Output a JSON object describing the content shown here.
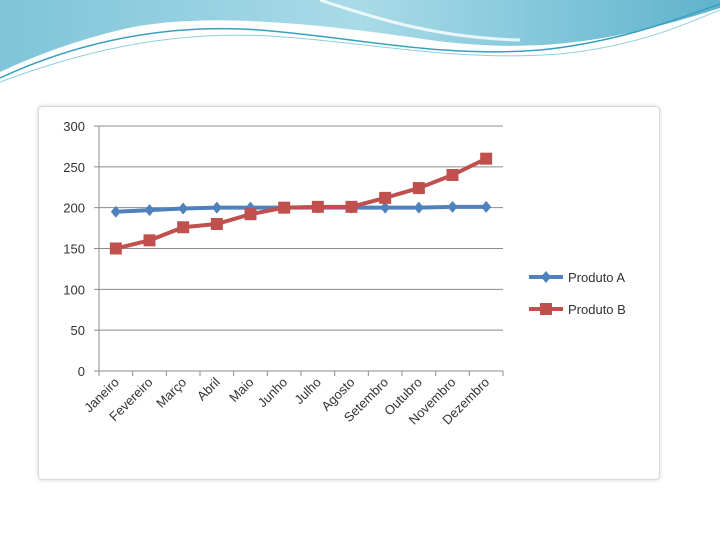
{
  "chart_data": {
    "type": "line",
    "title": "",
    "xlabel": "",
    "ylabel": "",
    "categories": [
      "Janeiro",
      "Fevereiro",
      "Março",
      "Abril",
      "Maio",
      "Junho",
      "Julho",
      "Agosto",
      "Setembro",
      "Outubro",
      "Novembro",
      "Dezembro"
    ],
    "ylim": [
      0,
      300
    ],
    "yticks": [
      0,
      50,
      100,
      150,
      200,
      250,
      300
    ],
    "grid": true,
    "legend_position": "right",
    "series": [
      {
        "name": "Produto A",
        "color": "#4f81bd",
        "marker": "diamond",
        "values": [
          195,
          197,
          199,
          200,
          200,
          200,
          200,
          200,
          200,
          200,
          201,
          201
        ]
      },
      {
        "name": "Produto B",
        "color": "#c0504d",
        "marker": "square",
        "values": [
          150,
          160,
          176,
          180,
          192,
          200,
          201,
          201,
          212,
          224,
          240,
          260
        ]
      }
    ]
  }
}
